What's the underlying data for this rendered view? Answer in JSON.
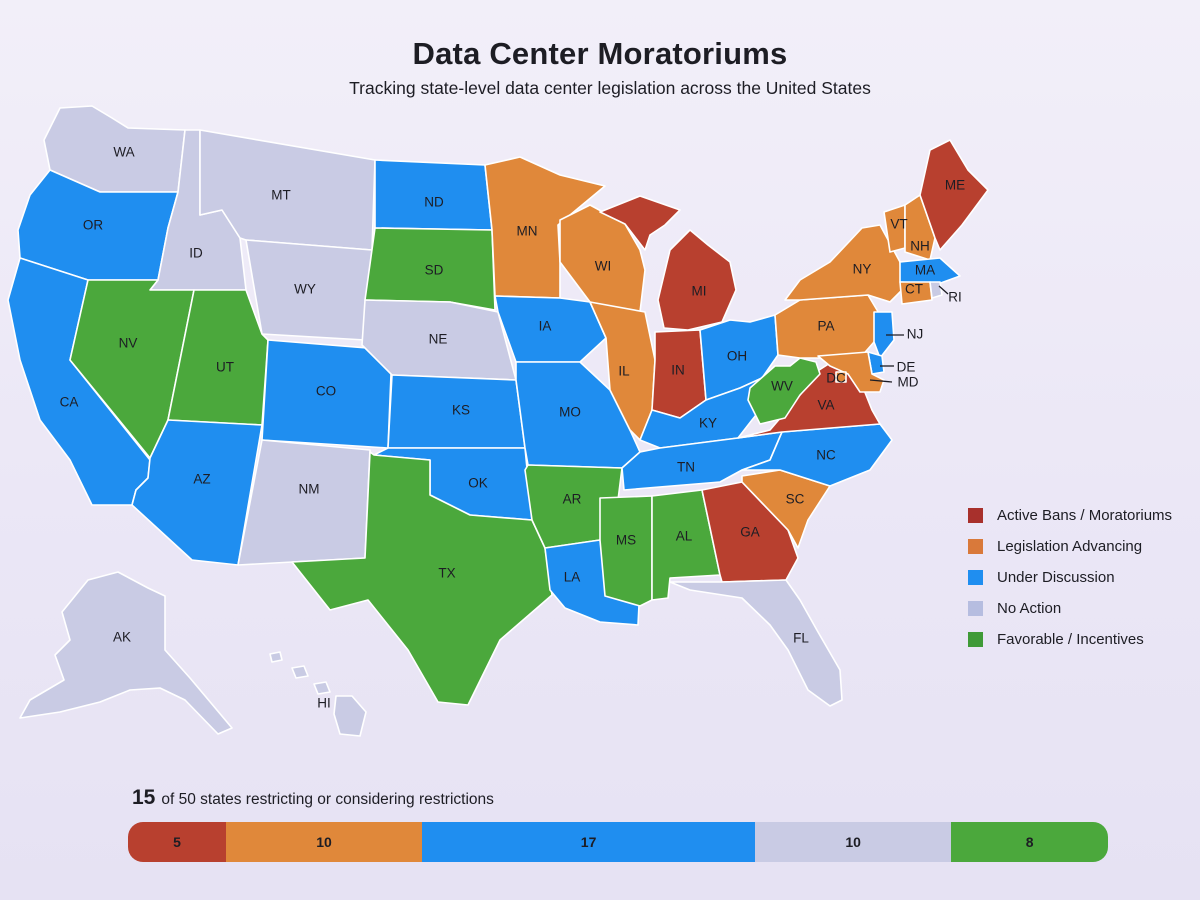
{
  "header": {
    "title": "Data Center Moratoriums",
    "subtitle": "Tracking state-level data center legislation across the United States"
  },
  "colors": {
    "active_bans": "#b8402f",
    "legislation_advancing": "#e0883a",
    "under_discussion": "#1f8ef0",
    "no_action": "#c9cbe4",
    "favorable": "#4ba83c"
  },
  "legend": {
    "items": [
      {
        "label": "Active Bans / Moratoriums",
        "color": "#a8302c"
      },
      {
        "label": "Legislation Advancing",
        "color": "#d9793a"
      },
      {
        "label": "Under Discussion",
        "color": "#1f8ef0"
      },
      {
        "label": "No Action",
        "color": "#b6bde0"
      },
      {
        "label": "Favorable / Incentives",
        "color": "#3f9a37"
      }
    ]
  },
  "map": {
    "states": [
      {
        "abbr": "WA",
        "category": "no_action"
      },
      {
        "abbr": "OR",
        "category": "under_discussion"
      },
      {
        "abbr": "CA",
        "category": "under_discussion"
      },
      {
        "abbr": "ID",
        "category": "no_action"
      },
      {
        "abbr": "NV",
        "category": "favorable"
      },
      {
        "abbr": "MT",
        "category": "no_action"
      },
      {
        "abbr": "WY",
        "category": "no_action"
      },
      {
        "abbr": "UT",
        "category": "favorable"
      },
      {
        "abbr": "AZ",
        "category": "under_discussion"
      },
      {
        "abbr": "CO",
        "category": "under_discussion"
      },
      {
        "abbr": "NM",
        "category": "no_action"
      },
      {
        "abbr": "ND",
        "category": "under_discussion"
      },
      {
        "abbr": "SD",
        "category": "favorable"
      },
      {
        "abbr": "NE",
        "category": "no_action"
      },
      {
        "abbr": "KS",
        "category": "under_discussion"
      },
      {
        "abbr": "OK",
        "category": "under_discussion"
      },
      {
        "abbr": "TX",
        "category": "favorable"
      },
      {
        "abbr": "MN",
        "category": "legislation_advancing"
      },
      {
        "abbr": "IA",
        "category": "under_discussion"
      },
      {
        "abbr": "MO",
        "category": "under_discussion"
      },
      {
        "abbr": "AR",
        "category": "favorable"
      },
      {
        "abbr": "LA",
        "category": "under_discussion"
      },
      {
        "abbr": "WI",
        "category": "legislation_advancing"
      },
      {
        "abbr": "IL",
        "category": "legislation_advancing"
      },
      {
        "abbr": "MI",
        "category": "active_bans"
      },
      {
        "abbr": "IN",
        "category": "active_bans"
      },
      {
        "abbr": "OH",
        "category": "under_discussion"
      },
      {
        "abbr": "KY",
        "category": "under_discussion"
      },
      {
        "abbr": "TN",
        "category": "under_discussion"
      },
      {
        "abbr": "MS",
        "category": "favorable"
      },
      {
        "abbr": "AL",
        "category": "favorable"
      },
      {
        "abbr": "GA",
        "category": "active_bans"
      },
      {
        "abbr": "FL",
        "category": "no_action"
      },
      {
        "abbr": "SC",
        "category": "legislation_advancing"
      },
      {
        "abbr": "NC",
        "category": "under_discussion"
      },
      {
        "abbr": "VA",
        "category": "active_bans"
      },
      {
        "abbr": "WV",
        "category": "favorable"
      },
      {
        "abbr": "PA",
        "category": "legislation_advancing"
      },
      {
        "abbr": "NY",
        "category": "legislation_advancing"
      },
      {
        "abbr": "VT",
        "category": "legislation_advancing"
      },
      {
        "abbr": "NH",
        "category": "legislation_advancing"
      },
      {
        "abbr": "ME",
        "category": "active_bans"
      },
      {
        "abbr": "MA",
        "category": "under_discussion"
      },
      {
        "abbr": "CT",
        "category": "legislation_advancing"
      },
      {
        "abbr": "RI",
        "category": "no_action"
      },
      {
        "abbr": "NJ",
        "category": "under_discussion"
      },
      {
        "abbr": "DE",
        "category": "under_discussion"
      },
      {
        "abbr": "MD",
        "category": "legislation_advancing"
      },
      {
        "abbr": "DC",
        "category": "legislation_advancing"
      },
      {
        "abbr": "AK",
        "category": "no_action"
      },
      {
        "abbr": "HI",
        "category": "no_action"
      }
    ]
  },
  "summary": {
    "count": "15",
    "text": "of 50 states restricting or considering restrictions"
  },
  "bar": {
    "segments": [
      {
        "value": 5,
        "label": "5",
        "color": "#b8402f"
      },
      {
        "value": 10,
        "label": "10",
        "color": "#e0883a"
      },
      {
        "value": 17,
        "label": "17",
        "color": "#1f8ef0"
      },
      {
        "value": 10,
        "label": "10",
        "color": "#c9cbe4"
      },
      {
        "value": 8,
        "label": "8",
        "color": "#4ba83c"
      }
    ]
  }
}
